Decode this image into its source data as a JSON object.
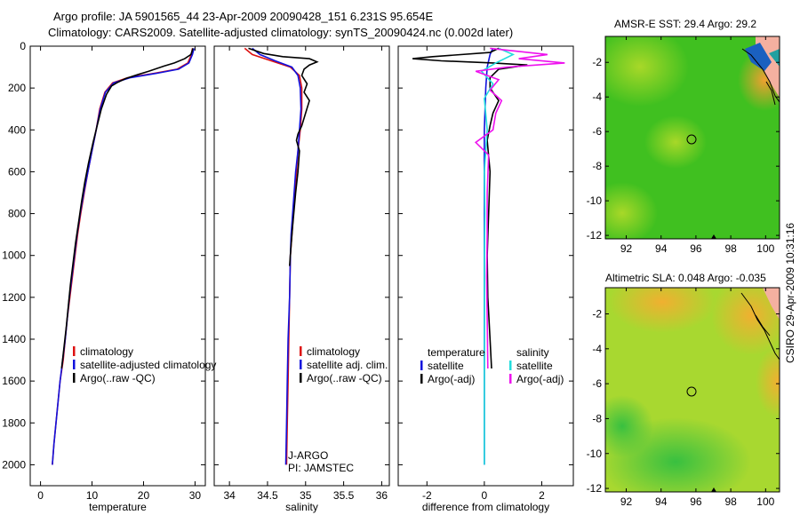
{
  "header": {
    "line1": "Argo profile: JA 5901565_44 23-Apr-2009 20090428_151 6.231S 95.654E",
    "line2": "Climatology: CARS2009. Satellite-adjusted climatology: synTS_20090424.nc (0.002d later)"
  },
  "side_label": "CSIRO 29-Apr-2009 10:31:16",
  "chart_data": [
    {
      "type": "line",
      "id": "temperature",
      "xlabel": "temperature",
      "xlim": [
        -2,
        32
      ],
      "ylim": [
        2100,
        0
      ],
      "xticks": [
        0,
        10,
        20,
        30
      ],
      "xtick_labels": [
        "0",
        "10",
        "20",
        "30"
      ],
      "yticks": [
        0,
        200,
        400,
        600,
        800,
        1000,
        1200,
        1400,
        1600,
        1800,
        2000
      ],
      "ytick_labels": [
        "0",
        "200",
        "400",
        "600",
        "800",
        "1000",
        "1200",
        "1400",
        "1600",
        "1800",
        "2000"
      ],
      "legend": [
        "climatology",
        "satellite-adjusted climatology",
        "Argo(..raw -QC)"
      ],
      "series": [
        {
          "name": "climatology",
          "color": "#dd1111",
          "points": [
            [
              29.5,
              10
            ],
            [
              29.3,
              40
            ],
            [
              28.6,
              80
            ],
            [
              26.5,
              110
            ],
            [
              22,
              130
            ],
            [
              17,
              150
            ],
            [
              14,
              175
            ],
            [
              12.5,
              220
            ],
            [
              11.5,
              300
            ],
            [
              10.8,
              400
            ],
            [
              10,
              500
            ],
            [
              9.2,
              600
            ],
            [
              8.5,
              700
            ],
            [
              7.8,
              800
            ],
            [
              7.2,
              900
            ],
            [
              6.7,
              1000
            ],
            [
              6.2,
              1100
            ],
            [
              5.7,
              1200
            ],
            [
              5.2,
              1300
            ],
            [
              4.8,
              1400
            ],
            [
              4.4,
              1500
            ],
            [
              3.8,
              1600
            ],
            [
              3.4,
              1700
            ],
            [
              3,
              1800
            ],
            [
              2.6,
              1900
            ],
            [
              2.3,
              2000
            ]
          ]
        },
        {
          "name": "satellite-adjusted climatology",
          "color": "#1111dd",
          "points": [
            [
              29.8,
              10
            ],
            [
              29.5,
              40
            ],
            [
              28.8,
              80
            ],
            [
              26.8,
              110
            ],
            [
              22.5,
              130
            ],
            [
              17.5,
              150
            ],
            [
              14.2,
              175
            ],
            [
              12.6,
              220
            ],
            [
              11.6,
              300
            ],
            [
              10.8,
              400
            ],
            [
              10,
              500
            ],
            [
              9.2,
              600
            ],
            [
              8.4,
              700
            ],
            [
              7.7,
              800
            ],
            [
              7.1,
              900
            ],
            [
              6.6,
              1000
            ],
            [
              6.1,
              1100
            ],
            [
              5.6,
              1200
            ],
            [
              5.2,
              1300
            ],
            [
              4.8,
              1400
            ],
            [
              4.3,
              1500
            ],
            [
              3.8,
              1600
            ],
            [
              3.4,
              1700
            ],
            [
              3,
              1800
            ],
            [
              2.6,
              1900
            ],
            [
              2.3,
              2000
            ]
          ]
        },
        {
          "name": "Argo(..raw -QC)",
          "color": "#000000",
          "points": [
            [
              29.6,
              10
            ],
            [
              29.2,
              40
            ],
            [
              28,
              60
            ],
            [
              26,
              80
            ],
            [
              24,
              95
            ],
            [
              21,
              120
            ],
            [
              19,
              135
            ],
            [
              16.5,
              155
            ],
            [
              14.8,
              175
            ],
            [
              13.8,
              190
            ],
            [
              12.8,
              230
            ],
            [
              11.8,
              300
            ],
            [
              11,
              380
            ],
            [
              10.2,
              460
            ],
            [
              9.3,
              560
            ],
            [
              8.6,
              650
            ],
            [
              8,
              740
            ],
            [
              7.4,
              840
            ],
            [
              6.8,
              940
            ],
            [
              6.3,
              1040
            ],
            [
              5.8,
              1140
            ],
            [
              5.4,
              1240
            ],
            [
              5,
              1340
            ],
            [
              4.5,
              1450
            ],
            [
              4.1,
              1540
            ]
          ]
        }
      ]
    },
    {
      "type": "line",
      "id": "salinity",
      "xlabel": "salinity",
      "xlim": [
        33.8,
        36.1
      ],
      "ylim": [
        2100,
        0
      ],
      "xticks": [
        34,
        34.5,
        35,
        35.5,
        36
      ],
      "xtick_labels": [
        "34",
        "34.5",
        "35",
        "35.5",
        "36"
      ],
      "legend": [
        "climatology",
        "satellite adj. clim.",
        "Argo(..raw -QC)"
      ],
      "annotations": [
        "J-ARGO",
        "PI: JAMSTEC"
      ],
      "series": [
        {
          "name": "climatology",
          "color": "#dd1111",
          "points": [
            [
              34.2,
              10
            ],
            [
              34.3,
              40
            ],
            [
              34.55,
              70
            ],
            [
              34.8,
              100
            ],
            [
              34.92,
              140
            ],
            [
              34.95,
              200
            ],
            [
              34.95,
              300
            ],
            [
              34.93,
              400
            ],
            [
              34.9,
              500
            ],
            [
              34.88,
              600
            ],
            [
              34.86,
              700
            ],
            [
              34.84,
              800
            ],
            [
              34.82,
              900
            ],
            [
              34.8,
              1000
            ],
            [
              34.79,
              1200
            ],
            [
              34.78,
              1400
            ],
            [
              34.77,
              1600
            ],
            [
              34.76,
              1800
            ],
            [
              34.75,
              2000
            ]
          ]
        },
        {
          "name": "satellite adj. clim.",
          "color": "#1111dd",
          "points": [
            [
              34.3,
              10
            ],
            [
              34.4,
              40
            ],
            [
              34.6,
              70
            ],
            [
              34.82,
              100
            ],
            [
              34.9,
              140
            ],
            [
              34.93,
              200
            ],
            [
              34.94,
              300
            ],
            [
              34.92,
              400
            ],
            [
              34.9,
              500
            ],
            [
              34.87,
              600
            ],
            [
              34.85,
              700
            ],
            [
              34.83,
              800
            ],
            [
              34.81,
              900
            ],
            [
              34.8,
              1000
            ],
            [
              34.79,
              1200
            ],
            [
              34.77,
              1400
            ],
            [
              34.76,
              1600
            ],
            [
              34.75,
              1800
            ],
            [
              34.74,
              2000
            ]
          ]
        },
        {
          "name": "Argo(..raw -QC)",
          "color": "#000000",
          "points": [
            [
              34.25,
              10
            ],
            [
              34.45,
              35
            ],
            [
              34.7,
              50
            ],
            [
              35.05,
              60
            ],
            [
              35.15,
              75
            ],
            [
              35.05,
              90
            ],
            [
              34.98,
              110
            ],
            [
              34.95,
              140
            ],
            [
              35.02,
              180
            ],
            [
              34.98,
              220
            ],
            [
              35.05,
              260
            ],
            [
              35.0,
              320
            ],
            [
              34.95,
              380
            ],
            [
              34.9,
              420
            ],
            [
              34.88,
              450
            ],
            [
              34.92,
              500
            ],
            [
              34.9,
              600
            ],
            [
              34.87,
              700
            ],
            [
              34.85,
              780
            ],
            [
              34.83,
              860
            ],
            [
              34.81,
              950
            ],
            [
              34.79,
              1050
            ]
          ]
        }
      ]
    },
    {
      "type": "line",
      "id": "difference",
      "xlabel": "difference from climatology",
      "xlim": [
        -3,
        3.1
      ],
      "ylim": [
        2100,
        0
      ],
      "xticks": [
        -2,
        0,
        2
      ],
      "xtick_labels": [
        "-2",
        "0",
        "2"
      ],
      "legend_left": [
        "temperature",
        "satellite",
        "Argo(-adj)"
      ],
      "legend_right": [
        "salinity",
        "satellite",
        "Argo(-adj)"
      ],
      "series": [
        {
          "name": "temperature satellite",
          "color": "#1111dd",
          "points": [
            [
              0.3,
              10
            ],
            [
              0.2,
              40
            ],
            [
              0.1,
              100
            ],
            [
              0.05,
              200
            ],
            [
              0,
              400
            ],
            [
              0,
              800
            ],
            [
              0,
              1200
            ],
            [
              0,
              1600
            ],
            [
              0,
              2000
            ]
          ]
        },
        {
          "name": "temperature Argo(-adj)",
          "color": "#000000",
          "points": [
            [
              0.5,
              10
            ],
            [
              0.2,
              30
            ],
            [
              -1.8,
              50
            ],
            [
              -2.5,
              60
            ],
            [
              -1.5,
              70
            ],
            [
              0.3,
              80
            ],
            [
              1.5,
              90
            ],
            [
              0.5,
              110
            ],
            [
              0.2,
              150
            ],
            [
              0.2,
              200
            ],
            [
              0.5,
              260
            ],
            [
              0.3,
              320
            ],
            [
              0.2,
              380
            ],
            [
              0.1,
              450
            ],
            [
              0.2,
              600
            ],
            [
              0.15,
              800
            ],
            [
              0.1,
              1000
            ],
            [
              0.12,
              1200
            ],
            [
              0.2,
              1400
            ],
            [
              0.25,
              1540
            ]
          ]
        },
        {
          "name": "salinity satellite",
          "color": "#22dddd",
          "points": [
            [
              0.5,
              10
            ],
            [
              1,
              40
            ],
            [
              0.4,
              80
            ],
            [
              -0.1,
              120
            ],
            [
              0.3,
              180
            ],
            [
              0,
              250
            ],
            [
              0.1,
              400
            ],
            [
              0,
              600
            ],
            [
              0.02,
              800
            ],
            [
              0,
              1000
            ],
            [
              0,
              1500
            ],
            [
              0,
              2000
            ]
          ]
        },
        {
          "name": "salinity Argo(-adj)",
          "color": "#ee11ee",
          "points": [
            [
              0.2,
              10
            ],
            [
              2.2,
              40
            ],
            [
              1.2,
              60
            ],
            [
              2.8,
              80
            ],
            [
              0.8,
              100
            ],
            [
              -0.3,
              120
            ],
            [
              0.5,
              160
            ],
            [
              0.2,
              210
            ],
            [
              0.6,
              260
            ],
            [
              0.4,
              320
            ],
            [
              0.3,
              400
            ],
            [
              -0.3,
              460
            ],
            [
              0.15,
              520
            ],
            [
              0.1,
              700
            ],
            [
              0.1,
              900
            ],
            [
              0.08,
              1100
            ],
            [
              0.1,
              1300
            ],
            [
              0.12,
              1540
            ]
          ]
        }
      ]
    },
    {
      "type": "heatmap",
      "id": "sst_map",
      "title": "AMSR-E SST: 29.4  Argo: 29.2",
      "xlim": [
        90.8,
        100.8
      ],
      "ylim": [
        -12.2,
        -0.5
      ],
      "xticks": [
        92,
        94,
        96,
        98,
        100
      ],
      "xtick_labels": [
        "92",
        "94",
        "96",
        "98",
        "100"
      ],
      "yticks": [
        -2,
        -4,
        -6,
        -8,
        -10,
        -12
      ],
      "ytick_labels": [
        "-2",
        "-4",
        "-6",
        "-8",
        "-10",
        "-12"
      ],
      "marker": [
        95.654,
        -6.231
      ],
      "base_color": "#40c020"
    },
    {
      "type": "heatmap",
      "id": "sla_map",
      "title": "Altimetric SLA: 0.048  Argo: -0.035",
      "xlim": [
        90.8,
        100.8
      ],
      "ylim": [
        -12.2,
        -0.5
      ],
      "xticks": [
        92,
        94,
        96,
        98,
        100
      ],
      "xtick_labels": [
        "92",
        "94",
        "96",
        "98",
        "100"
      ],
      "yticks": [
        -2,
        -4,
        -6,
        -8,
        -10,
        -12
      ],
      "ytick_labels": [
        "-2",
        "-4",
        "-6",
        "-8",
        "-10",
        "-12"
      ],
      "marker": [
        95.654,
        -6.231
      ],
      "base_color": "#a0dd30"
    }
  ]
}
